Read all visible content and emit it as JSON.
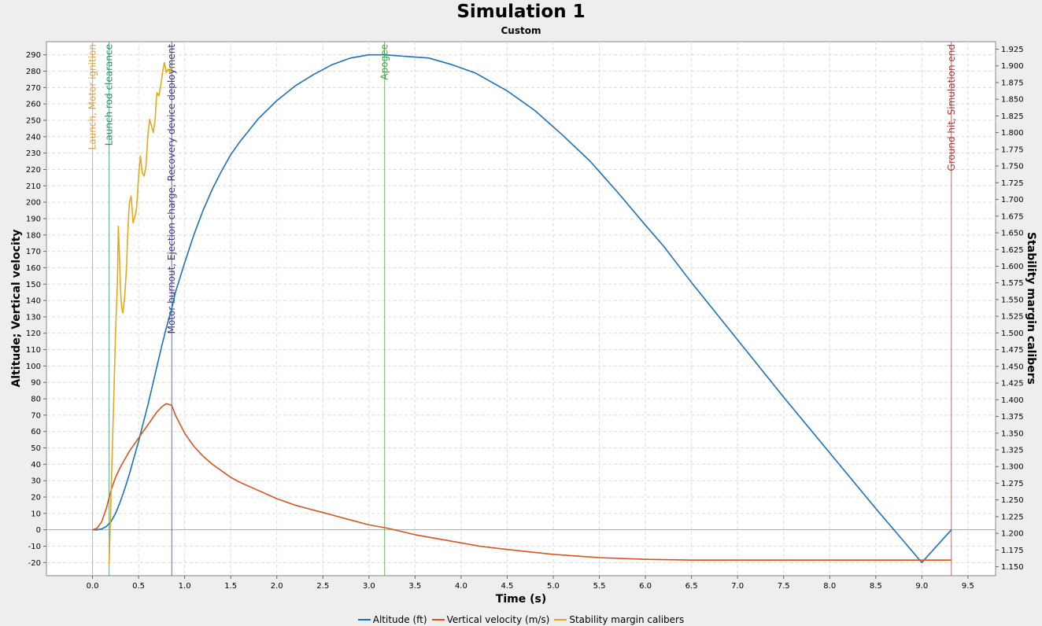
{
  "chart_data": {
    "type": "line",
    "title": "Simulation 1",
    "subtitle": "Custom",
    "xlabel": "Time (s)",
    "ylabel": "Altitude; Vertical velocity",
    "y2label": "Stability margin calibers",
    "xlim": [
      -0.5,
      9.8
    ],
    "ylim": [
      -28,
      298
    ],
    "y2lim": [
      1.1366,
      1.9362
    ],
    "x_ticks": [
      "0.0",
      "0.5",
      "1.0",
      "1.5",
      "2.0",
      "2.5",
      "3.0",
      "3.5",
      "4.0",
      "4.5",
      "5.0",
      "5.5",
      "6.0",
      "6.5",
      "7.0",
      "7.5",
      "8.0",
      "8.5",
      "9.0",
      "9.5"
    ],
    "y_ticks": [
      "-20",
      "-10",
      "0",
      "10",
      "20",
      "30",
      "40",
      "50",
      "60",
      "70",
      "80",
      "90",
      "100",
      "110",
      "120",
      "130",
      "140",
      "150",
      "160",
      "170",
      "180",
      "190",
      "200",
      "210",
      "220",
      "230",
      "240",
      "250",
      "260",
      "270",
      "280",
      "290"
    ],
    "y2_ticks": [
      "1.150",
      "1.175",
      "1.200",
      "1.225",
      "1.250",
      "1.275",
      "1.300",
      "1.325",
      "1.350",
      "1.375",
      "1.400",
      "1.425",
      "1.450",
      "1.475",
      "1.500",
      "1.525",
      "1.550",
      "1.575",
      "1.600",
      "1.625",
      "1.650",
      "1.675",
      "1.700",
      "1.725",
      "1.750",
      "1.775",
      "1.800",
      "1.825",
      "1.850",
      "1.875",
      "1.900",
      "1.925"
    ],
    "grid": true,
    "legend_position": "bottom",
    "events": [
      {
        "x": 0.0,
        "label": "Launch, Motor ignition",
        "color": "#e0a040"
      },
      {
        "x": 0.18,
        "label": "Launch rod clearance",
        "color": "#2e8b6e"
      },
      {
        "x": 0.86,
        "label": "Motor burnout, Ejection charge, Recovery device deployment",
        "color": "#3a3a80"
      },
      {
        "x": 3.17,
        "label": "Apogee",
        "color": "#3aa03a"
      },
      {
        "x": 9.32,
        "label": "Ground hit, Simulation end",
        "color": "#a04040"
      }
    ],
    "series": [
      {
        "name": "Altitude (ft)",
        "color": "#1c72b8",
        "axis": "left",
        "x": [
          0,
          0.05,
          0.1,
          0.15,
          0.2,
          0.25,
          0.3,
          0.35,
          0.4,
          0.45,
          0.5,
          0.55,
          0.6,
          0.65,
          0.7,
          0.75,
          0.8,
          0.86,
          0.9,
          1.0,
          1.1,
          1.2,
          1.3,
          1.4,
          1.5,
          1.6,
          1.8,
          2.0,
          2.2,
          2.4,
          2.6,
          2.8,
          3.0,
          3.17,
          3.4,
          3.65,
          3.9,
          4.15,
          4.5,
          4.8,
          5.1,
          5.4,
          5.7,
          6.0,
          6.2,
          6.5,
          7.0,
          7.5,
          8.0,
          8.5,
          9.0,
          9.32
        ],
        "values": [
          0,
          0,
          0.5,
          2,
          5,
          10,
          17,
          25,
          34,
          44,
          54,
          65,
          76,
          88,
          100,
          112,
          123,
          135,
          145,
          163,
          180,
          195,
          208,
          219,
          229,
          237,
          251,
          262,
          271,
          278,
          284,
          288,
          290,
          290,
          289,
          288,
          284,
          279,
          268,
          256,
          241,
          225,
          206,
          186,
          173,
          151,
          116,
          81,
          47,
          13,
          -20,
          0
        ]
      },
      {
        "name": "Vertical velocity (m/s)",
        "color": "#d4561e",
        "axis": "left",
        "x": [
          0,
          0.05,
          0.1,
          0.15,
          0.2,
          0.25,
          0.3,
          0.35,
          0.4,
          0.45,
          0.5,
          0.55,
          0.6,
          0.65,
          0.7,
          0.75,
          0.8,
          0.86,
          0.9,
          1.0,
          1.1,
          1.2,
          1.3,
          1.4,
          1.5,
          1.6,
          1.8,
          2.0,
          2.2,
          2.4,
          2.6,
          2.8,
          3.0,
          3.2,
          3.5,
          3.8,
          4.0,
          4.2,
          4.5,
          5.0,
          5.5,
          6.0,
          6.5,
          7.0,
          7.5,
          8.0,
          8.5,
          9.0,
          9.32
        ],
        "values": [
          0,
          1,
          5,
          13,
          24,
          32,
          38,
          43,
          48,
          52,
          56,
          60,
          64,
          68,
          72,
          75,
          77,
          76,
          70,
          59,
          51,
          45,
          40,
          36,
          32,
          29,
          24,
          19,
          15,
          12,
          9,
          6,
          3,
          1,
          -3,
          -6,
          -8,
          -10,
          -12,
          -15,
          -17,
          -18,
          -18.5,
          -18.5,
          -18.5,
          -18.5,
          -18.5,
          -18.5,
          -18.5
        ]
      },
      {
        "name": "Stability margin calibers",
        "color": "#e6a81a",
        "axis": "right",
        "x": [
          0.18,
          0.19,
          0.21,
          0.23,
          0.25,
          0.27,
          0.28,
          0.29,
          0.3,
          0.31,
          0.32,
          0.33,
          0.35,
          0.37,
          0.38,
          0.39,
          0.4,
          0.42,
          0.44,
          0.45,
          0.47,
          0.48,
          0.49,
          0.5,
          0.52,
          0.54,
          0.56,
          0.58,
          0.59,
          0.6,
          0.62,
          0.64,
          0.66,
          0.68,
          0.69,
          0.7,
          0.72,
          0.74,
          0.76,
          0.78,
          0.8,
          0.82,
          0.84,
          0.86
        ],
        "values": [
          1.153,
          1.2,
          1.3,
          1.4,
          1.5,
          1.575,
          1.66,
          1.625,
          1.58,
          1.55,
          1.535,
          1.53,
          1.555,
          1.6,
          1.64,
          1.67,
          1.695,
          1.705,
          1.665,
          1.67,
          1.68,
          1.69,
          1.71,
          1.735,
          1.765,
          1.74,
          1.735,
          1.75,
          1.77,
          1.795,
          1.82,
          1.81,
          1.8,
          1.82,
          1.845,
          1.86,
          1.855,
          1.87,
          1.89,
          1.905,
          1.89,
          1.895,
          1.89,
          1.9
        ]
      }
    ]
  }
}
